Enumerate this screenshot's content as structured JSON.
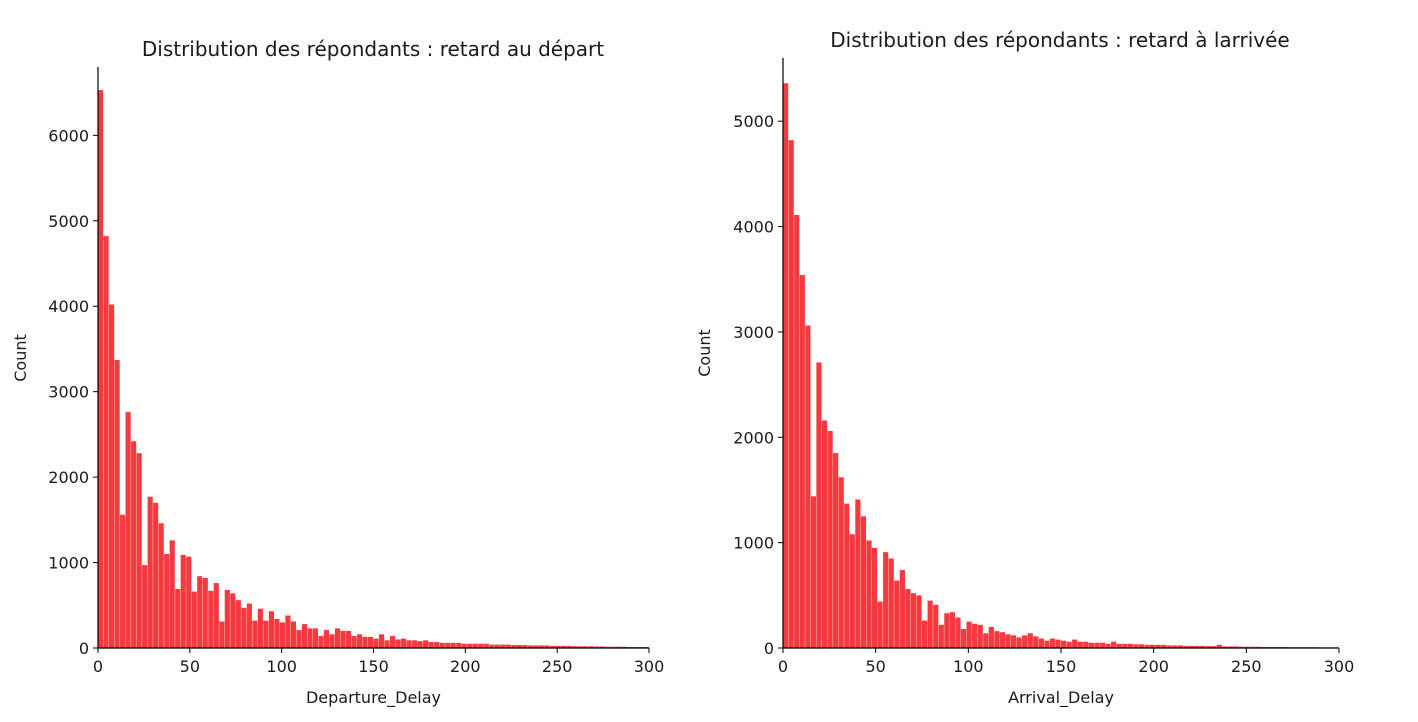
{
  "chart_data": [
    {
      "type": "bar",
      "title": "Distribution des répondants : retard au départ",
      "xlabel": "Departure_Delay",
      "ylabel": "Count",
      "xlim": [
        0,
        300
      ],
      "ylim": [
        0,
        6800
      ],
      "grid": false,
      "color": "#f4242a",
      "xticks": [
        0,
        50,
        100,
        150,
        200,
        250,
        300
      ],
      "yticks": [
        0,
        1000,
        2000,
        3000,
        4000,
        5000,
        6000
      ],
      "bin_width": 3,
      "values": [
        6530,
        4820,
        4020,
        3370,
        1560,
        2760,
        2420,
        2280,
        970,
        1770,
        1700,
        1460,
        1100,
        1260,
        690,
        1090,
        1070,
        660,
        840,
        820,
        670,
        760,
        310,
        680,
        640,
        560,
        470,
        520,
        320,
        460,
        320,
        430,
        340,
        300,
        380,
        310,
        210,
        280,
        230,
        230,
        140,
        210,
        160,
        230,
        200,
        200,
        140,
        160,
        130,
        130,
        110,
        160,
        90,
        140,
        100,
        110,
        90,
        90,
        80,
        90,
        70,
        70,
        60,
        60,
        60,
        60,
        50,
        50,
        50,
        50,
        50,
        40,
        40,
        40,
        40,
        35,
        35,
        35,
        30,
        30,
        30,
        30,
        25,
        25,
        25,
        25,
        20,
        20,
        20,
        20,
        18,
        18,
        15,
        15,
        15,
        15,
        12,
        12,
        12,
        12
      ]
    },
    {
      "type": "bar",
      "title": "Distribution des répondants : retard à larrivée",
      "xlabel": "Arrival_Delay",
      "ylabel": "Count",
      "xlim": [
        0,
        300
      ],
      "ylim": [
        0,
        5600
      ],
      "grid": false,
      "color": "#f4242a",
      "xticks": [
        0,
        50,
        100,
        150,
        200,
        250,
        300
      ],
      "yticks": [
        0,
        1000,
        2000,
        3000,
        4000,
        5000
      ],
      "bin_width": 3,
      "values": [
        5360,
        4820,
        4110,
        3540,
        3060,
        1440,
        2710,
        2160,
        2060,
        1850,
        1620,
        1370,
        1080,
        1410,
        1250,
        1020,
        950,
        440,
        910,
        850,
        640,
        740,
        560,
        520,
        500,
        260,
        450,
        410,
        220,
        330,
        340,
        290,
        180,
        250,
        230,
        220,
        140,
        200,
        160,
        150,
        130,
        120,
        100,
        120,
        140,
        110,
        90,
        70,
        90,
        80,
        70,
        60,
        80,
        60,
        60,
        50,
        50,
        50,
        40,
        60,
        40,
        40,
        40,
        35,
        35,
        30,
        30,
        30,
        30,
        25,
        25,
        25,
        20,
        20,
        20,
        20,
        18,
        18,
        30,
        15,
        15,
        15,
        12,
        12,
        12,
        12,
        10,
        10,
        10,
        10,
        10,
        8,
        8,
        8,
        8,
        8,
        6,
        6,
        6,
        6
      ]
    }
  ]
}
